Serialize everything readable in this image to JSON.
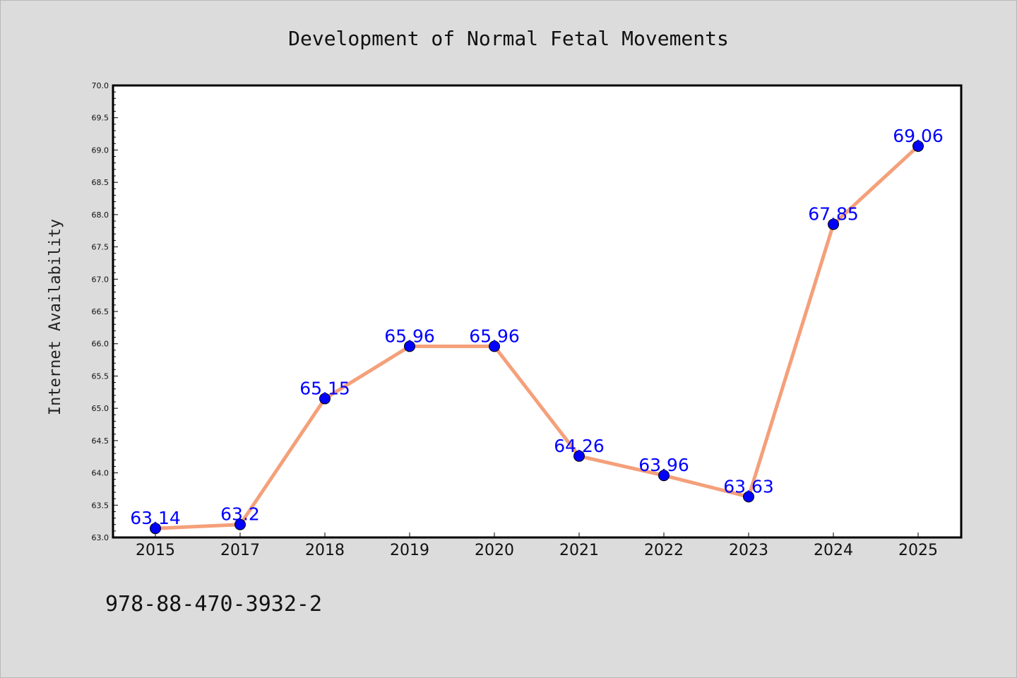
{
  "chart_data": {
    "type": "line",
    "title": "Development of Normal Fetal Movements",
    "xlabel": "",
    "ylabel": "Internet Availability",
    "categories": [
      "2015",
      "2017",
      "2018",
      "2019",
      "2020",
      "2021",
      "2022",
      "2023",
      "2024",
      "2025"
    ],
    "series": [
      {
        "values": [
          63.14,
          63.2,
          65.15,
          65.96,
          65.96,
          64.26,
          63.96,
          63.63,
          67.85,
          69.06
        ],
        "labels": [
          "63.14",
          "63.2",
          "65.15",
          "65.96",
          "65.96",
          "64.26",
          "63.96",
          "63.63",
          "67.85",
          "69.06"
        ]
      }
    ],
    "ylim": [
      63.0,
      70.0
    ],
    "yticks": [
      "63.0",
      "63.5",
      "64.0",
      "64.5",
      "65.0",
      "65.5",
      "66.0",
      "66.5",
      "67.0",
      "67.5",
      "68.0",
      "68.5",
      "69.0",
      "69.5",
      "70.0"
    ],
    "grid": false,
    "legend": "none",
    "colors": {
      "line": "#f4a07a",
      "marker": "#0000ff",
      "data_label": "#0000ff",
      "background": "#dcdcdc",
      "plot_area": "#ffffff"
    }
  },
  "footnote": "978-88-470-3932-2"
}
